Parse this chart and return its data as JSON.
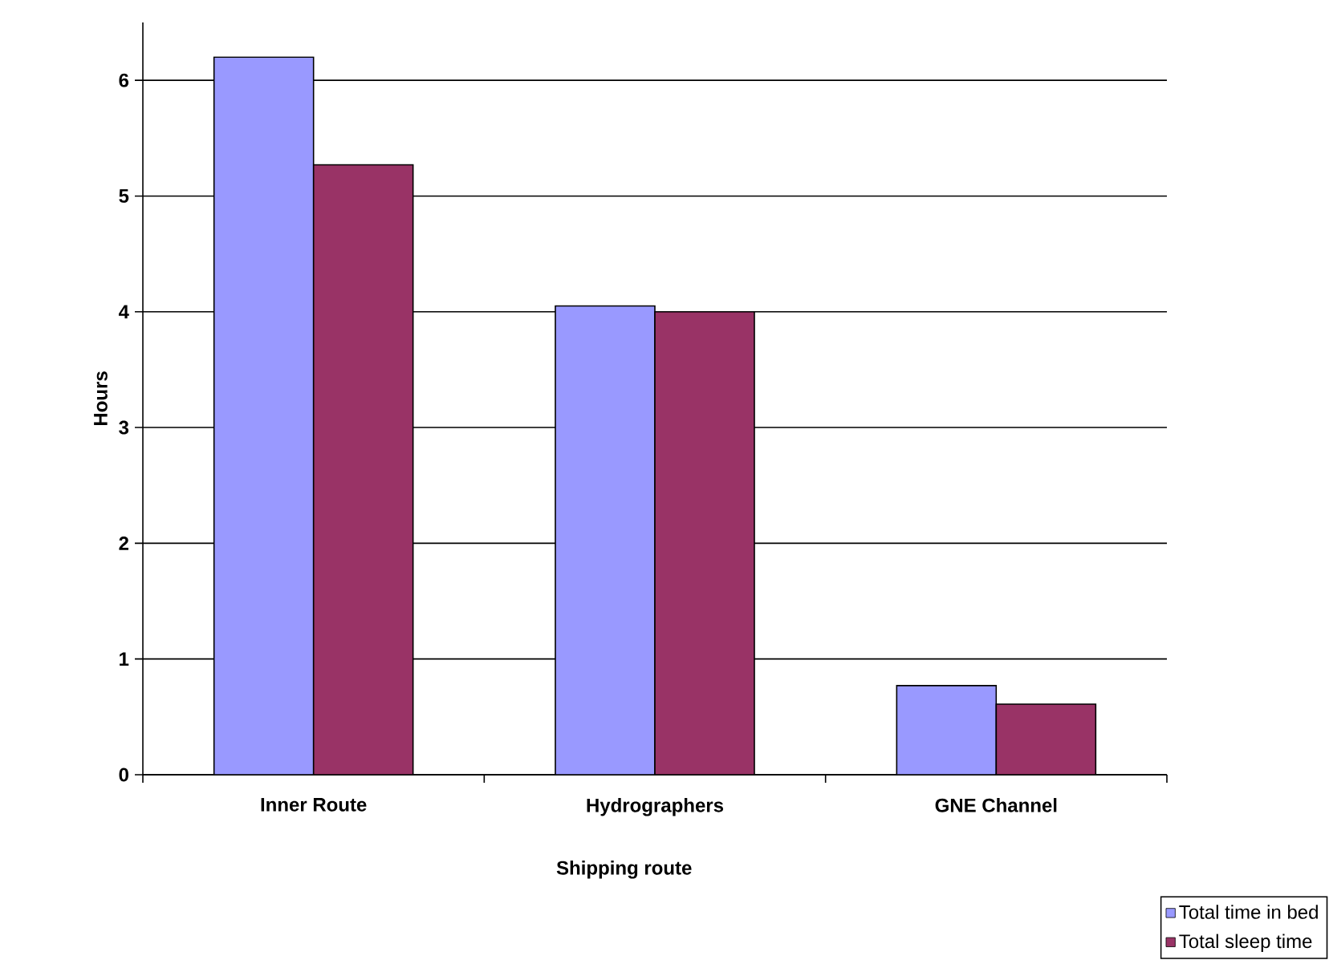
{
  "chart_data": {
    "type": "bar",
    "xlabel": "Shipping route",
    "ylabel": "Hours",
    "categories": [
      "Inner Route",
      "Hydrographers",
      "GNE Channel"
    ],
    "series": [
      {
        "name": "Total time in bed",
        "color": "#9999ff",
        "values": [
          6.2,
          4.05,
          0.77
        ]
      },
      {
        "name": "Total sleep time",
        "color": "#993366",
        "values": [
          5.27,
          4.0,
          0.61
        ]
      }
    ],
    "ylim": [
      0,
      6.5
    ],
    "yticks": [
      0,
      1,
      2,
      3,
      4,
      5,
      6
    ],
    "grid": "y",
    "legend": "bottom right"
  }
}
